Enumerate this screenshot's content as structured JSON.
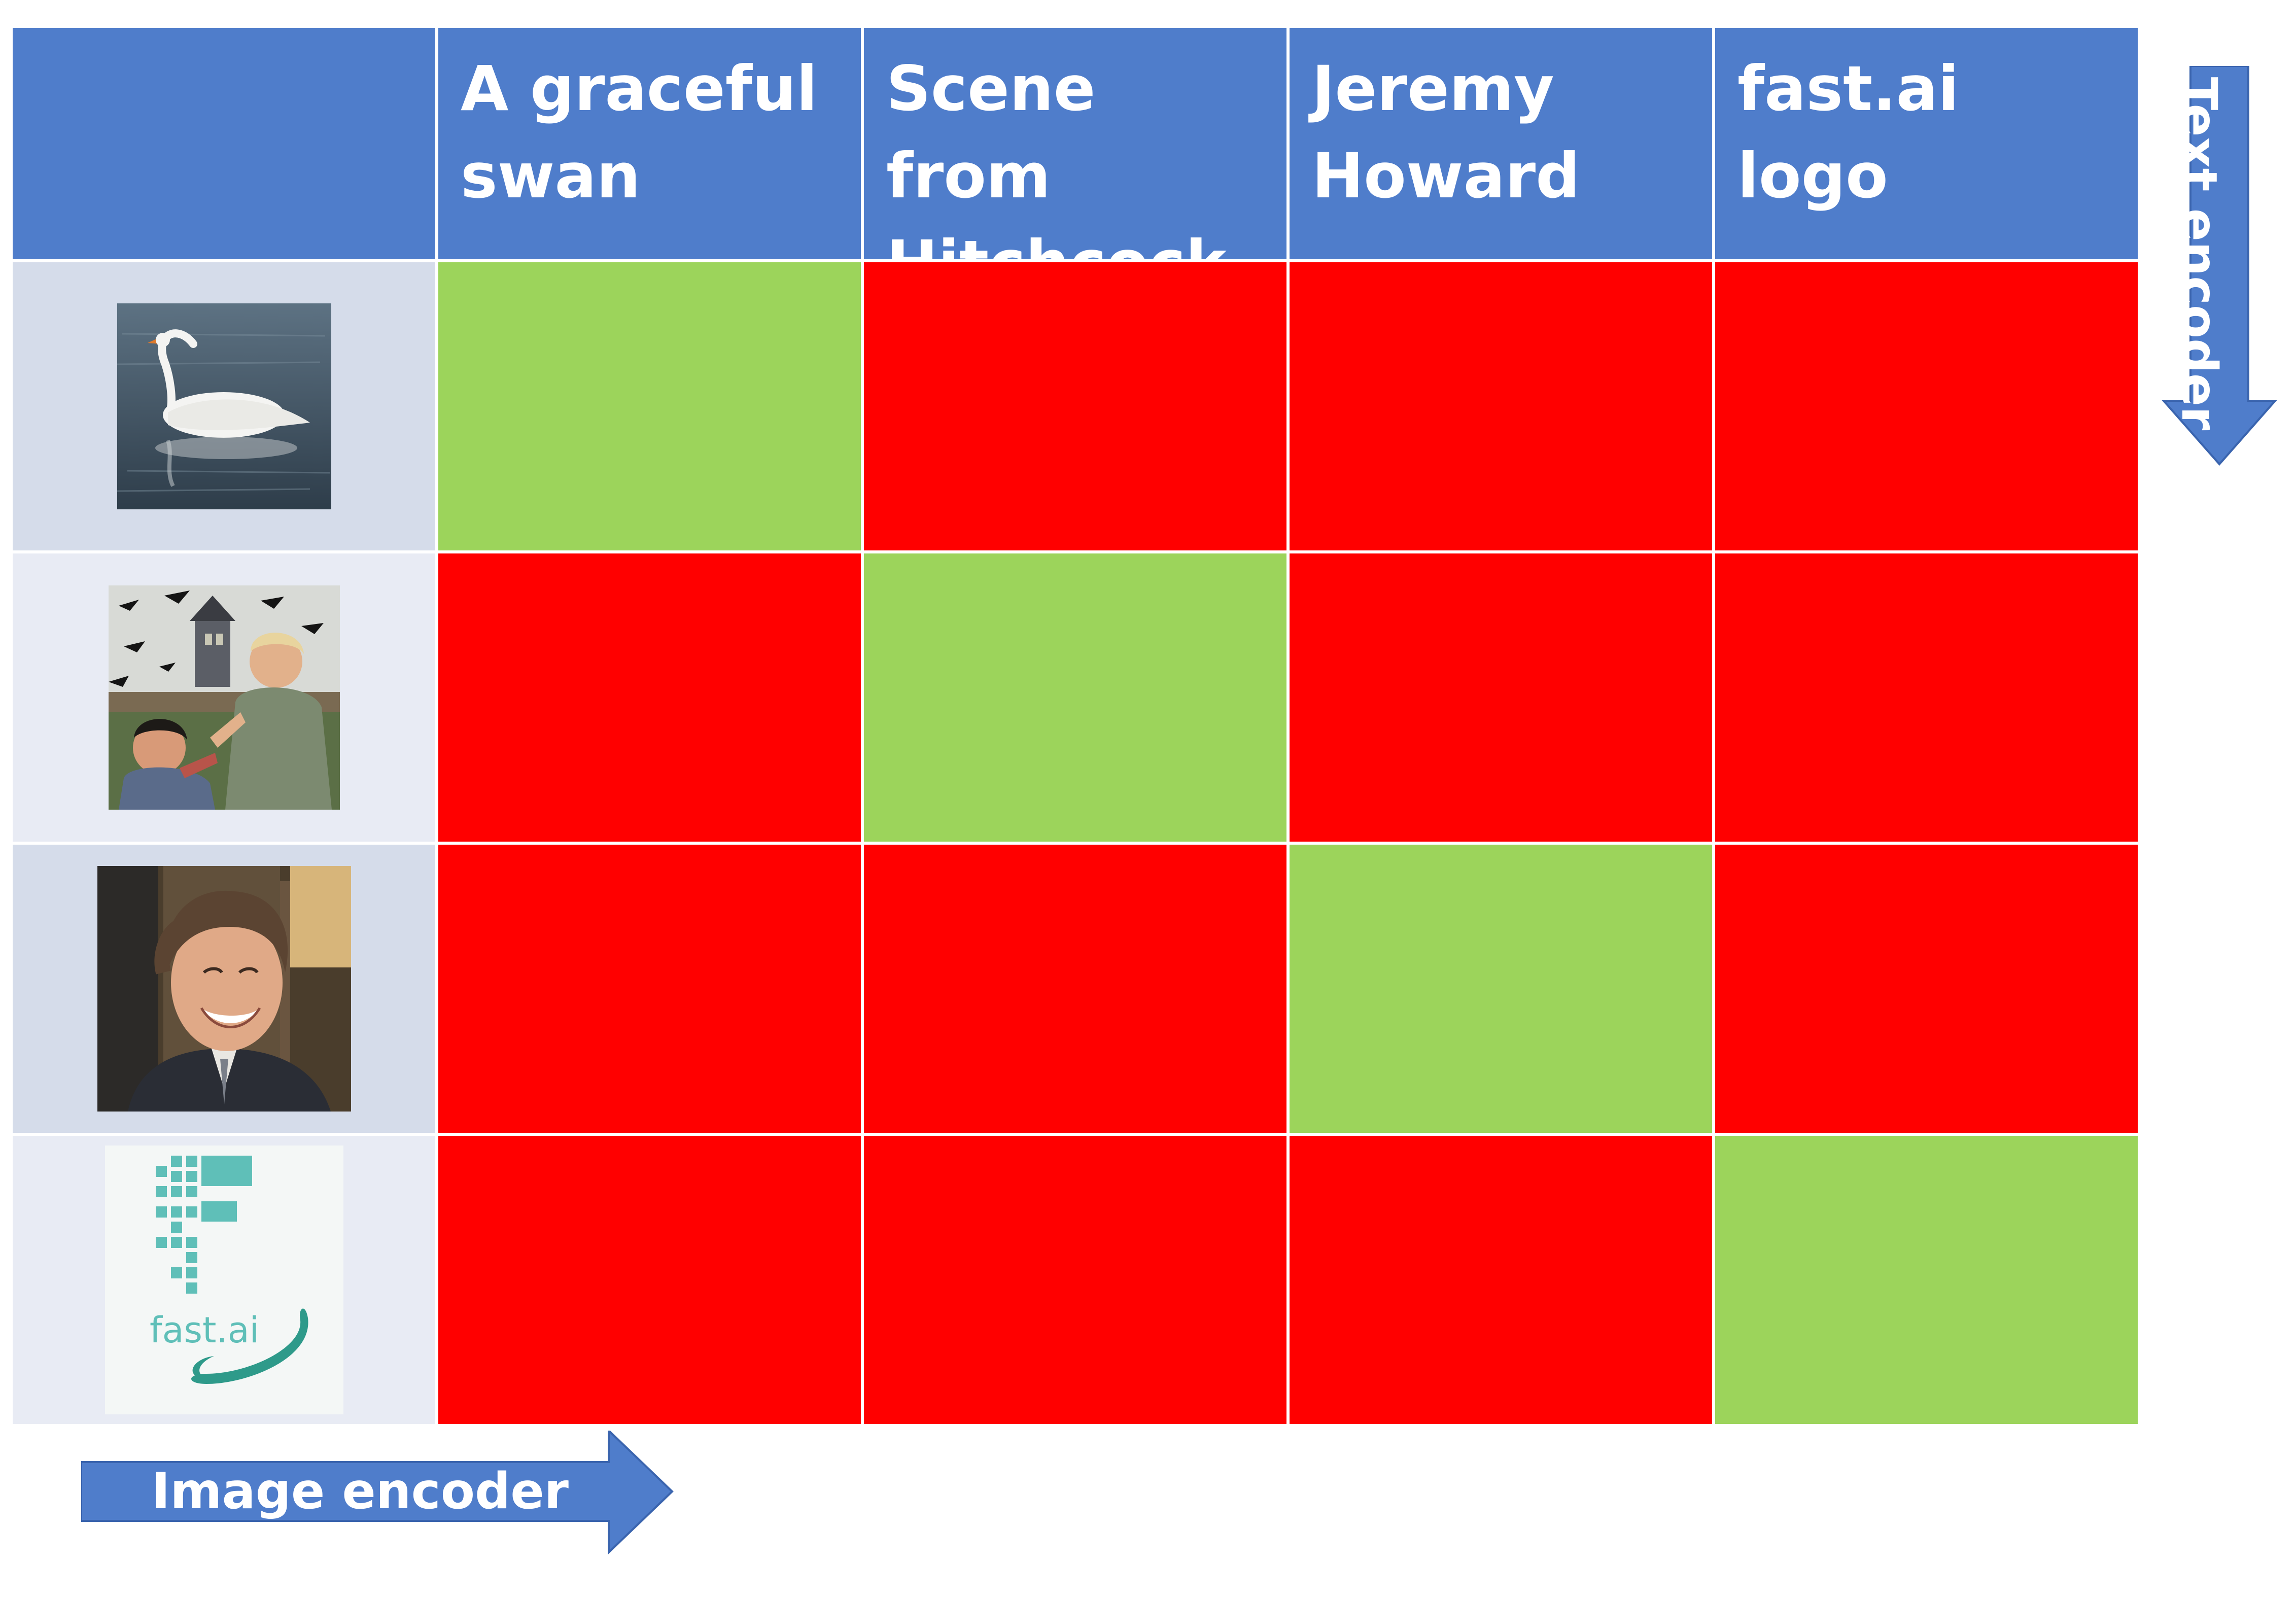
{
  "columns": [
    {
      "label_line1": "A graceful",
      "label_line2": "swan"
    },
    {
      "label_line1": "Scene from",
      "label_line2": "Hitchcock"
    },
    {
      "label_line1": "Jeremy",
      "label_line2": "Howard"
    },
    {
      "label_line1": "fast.ai logo",
      "label_line2": ""
    }
  ],
  "rows": [
    {
      "image": "swan-photo"
    },
    {
      "image": "hitchcock-scene-photo"
    },
    {
      "image": "jeremy-howard-photo"
    },
    {
      "image": "fastai-logo",
      "logo_text": "fast.ai"
    }
  ],
  "matrix": [
    [
      "match",
      "no-match",
      "no-match",
      "no-match"
    ],
    [
      "no-match",
      "match",
      "no-match",
      "no-match"
    ],
    [
      "no-match",
      "no-match",
      "match",
      "no-match"
    ],
    [
      "no-match",
      "no-match",
      "no-match",
      "match"
    ]
  ],
  "arrows": {
    "image_encoder": "Image encoder",
    "text_encoder": "Text encoder"
  },
  "colors": {
    "header": "#4f7dcb",
    "match": "#9cd45b",
    "no_match": "#ff0000",
    "arrow": "#4f7dcb"
  }
}
